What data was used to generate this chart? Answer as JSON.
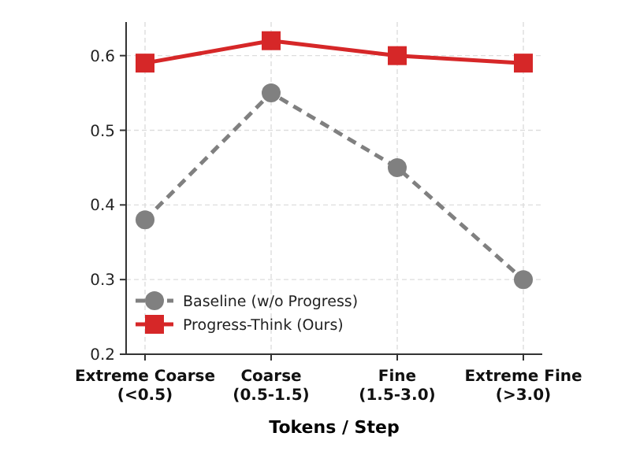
{
  "chart_data": {
    "type": "line",
    "xlabel": "Tokens / Step",
    "categories": [
      "Extreme Coarse\n(<0.5)",
      "Coarse\n(0.5-1.5)",
      "Fine\n(1.5-3.0)",
      "Extreme Fine\n(>3.0)"
    ],
    "series": [
      {
        "name": "Baseline (w/o Progress)",
        "color": "#808080",
        "values": [
          0.38,
          0.55,
          0.45,
          0.3
        ],
        "marker": "circle",
        "line_style": "dashed"
      },
      {
        "name": "Progress-Think (Ours)",
        "color": "#d62728",
        "values": [
          0.59,
          0.62,
          0.6,
          0.59
        ],
        "marker": "square",
        "line_style": "solid"
      }
    ],
    "ylim": [
      0.2,
      0.645
    ],
    "yticks": [
      0.2,
      0.3,
      0.4,
      0.5,
      0.6
    ],
    "grid": true,
    "legend": "bottom left"
  }
}
